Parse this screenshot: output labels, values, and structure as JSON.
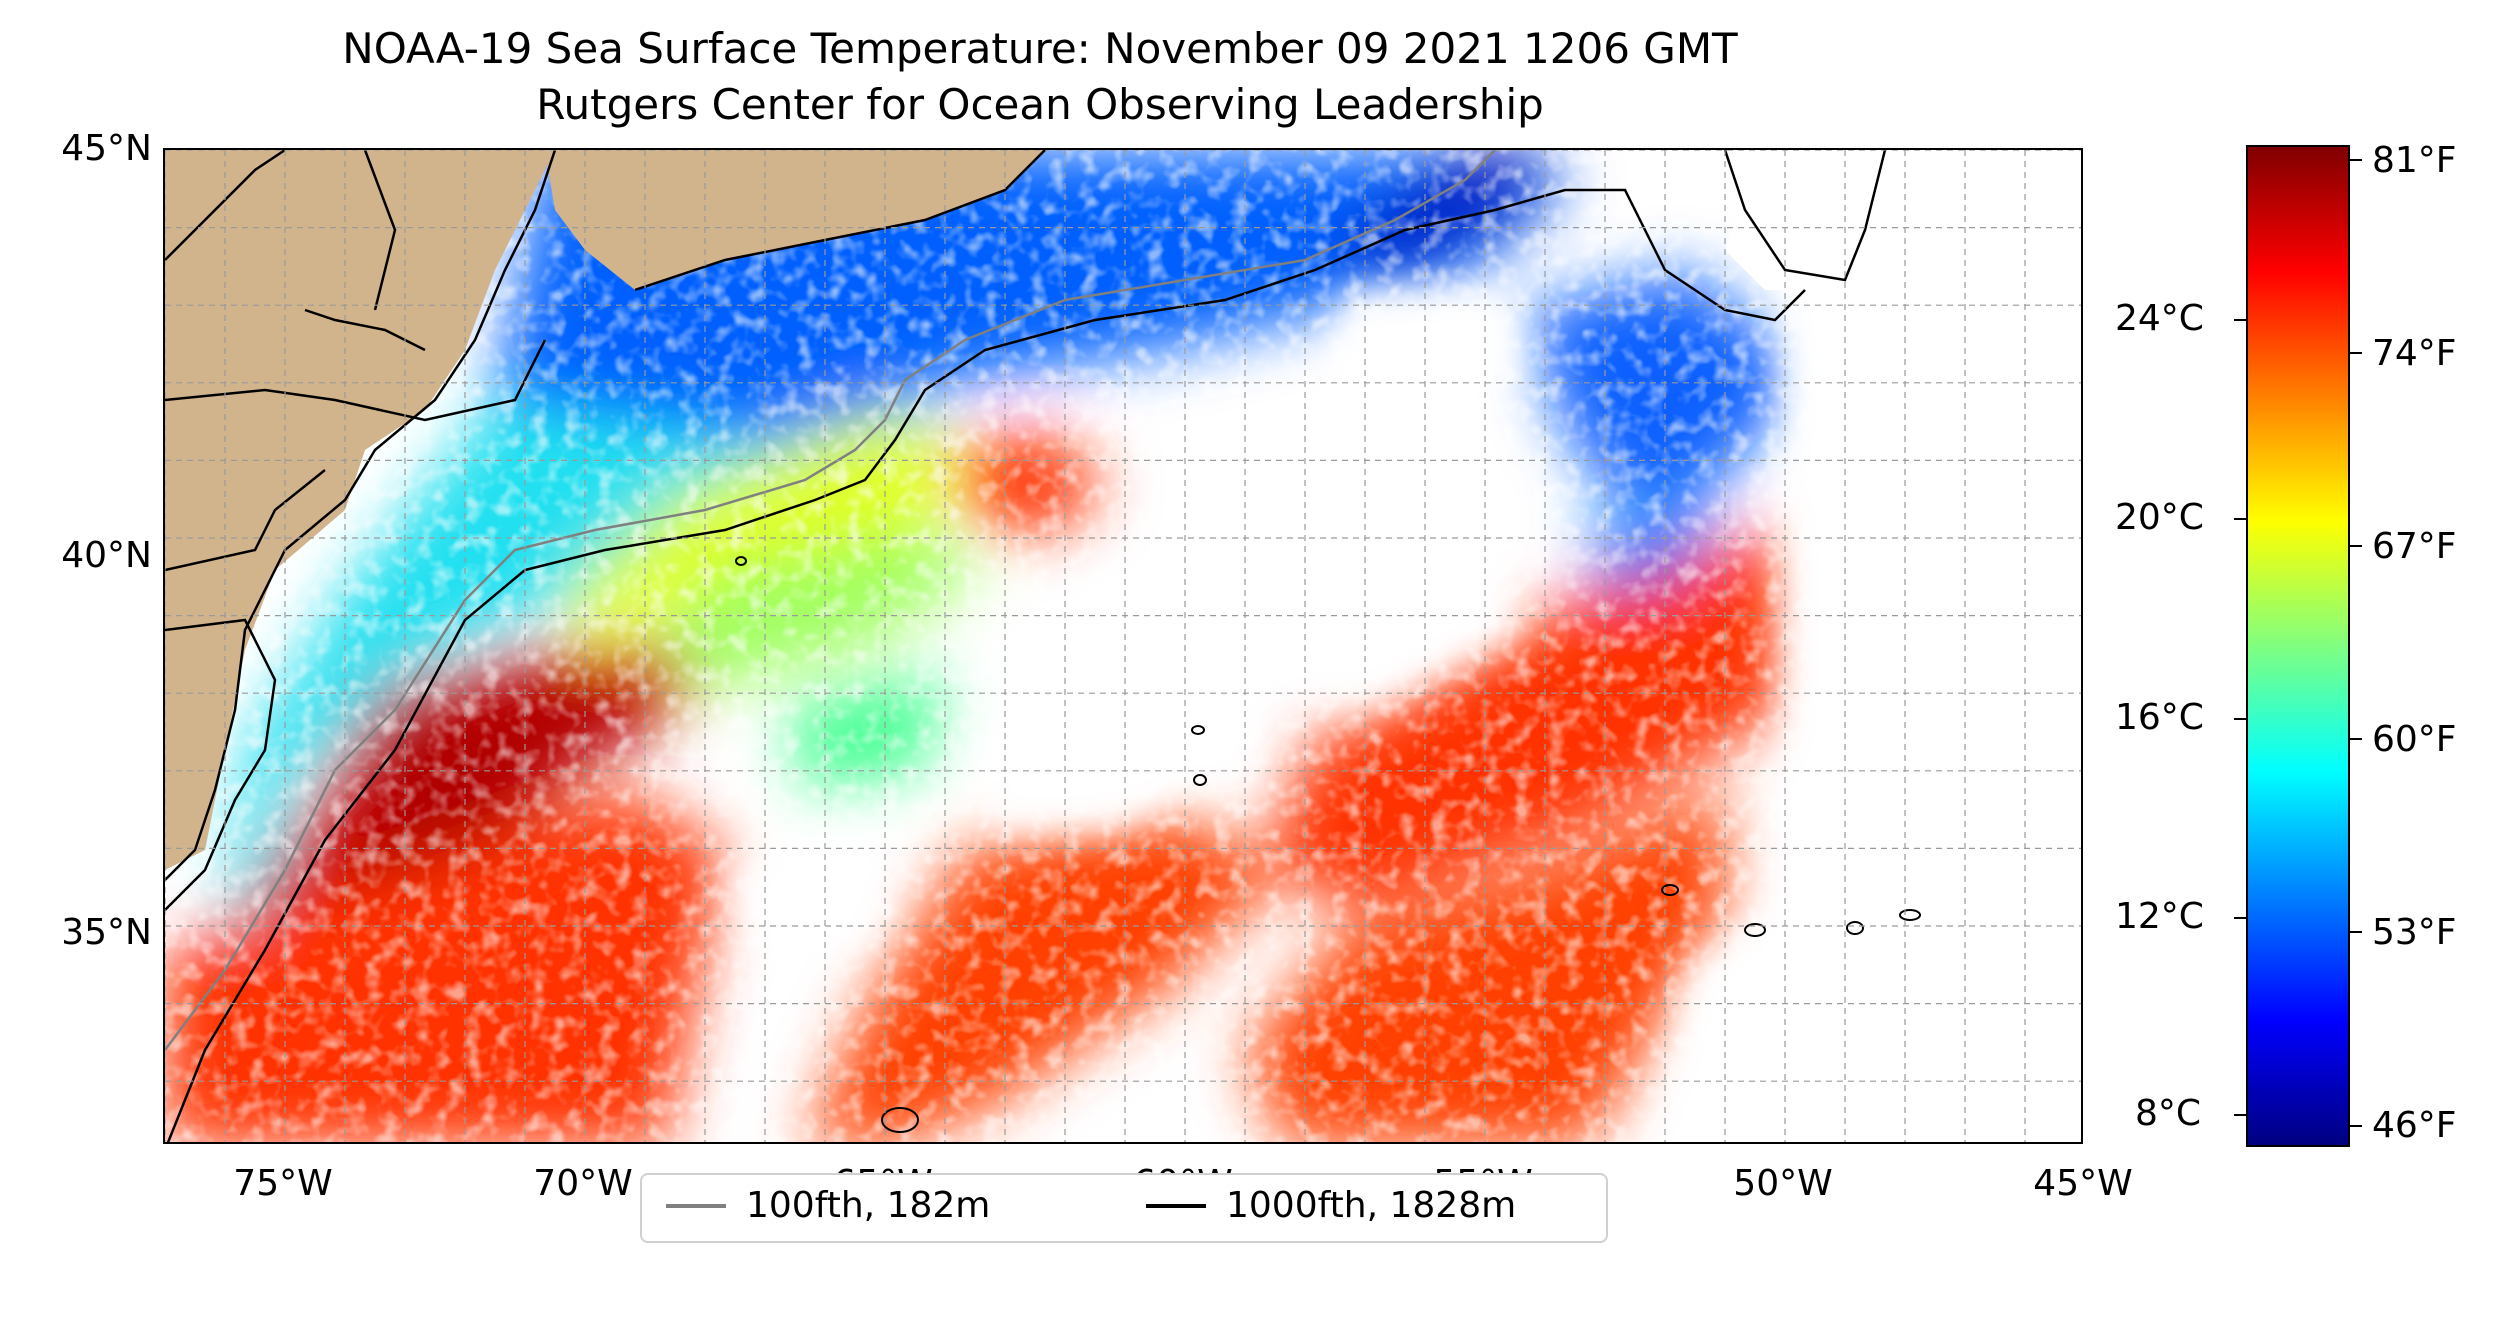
{
  "title": {
    "line1": "NOAA-19 Sea Surface Temperature: November 09 2021 1206 GMT",
    "line2": "Rutgers Center for Ocean Observing Leadership"
  },
  "map": {
    "latitude_labels": [
      "45°N",
      "40°N",
      "35°N"
    ],
    "longitude_labels": [
      "75°W",
      "70°W",
      "65°W",
      "60°W",
      "55°W",
      "50°W",
      "45°W"
    ],
    "extent": {
      "lon": [
        -77,
        -45
      ],
      "lat": [
        32.1,
        45
      ]
    },
    "land_color": "#d2b48c",
    "gridlines": "dashed grey"
  },
  "colorbar": {
    "celsius_labels": [
      "24°C",
      "20°C",
      "16°C",
      "12°C",
      "8°C"
    ],
    "fahrenheit_labels": [
      "81°F",
      "74°F",
      "67°F",
      "60°F",
      "53°F",
      "46°F"
    ],
    "colormap": "jet",
    "colors": [
      "#800000",
      "#ff0000",
      "#ff8000",
      "#ffff00",
      "#80ff80",
      "#00ffff",
      "#0080ff",
      "#0000ff",
      "#000080"
    ]
  },
  "legend": {
    "items": [
      {
        "label": "100fth, 182m",
        "color": "#808080"
      },
      {
        "label": "1000fth, 1828m",
        "color": "#000000"
      }
    ]
  }
}
